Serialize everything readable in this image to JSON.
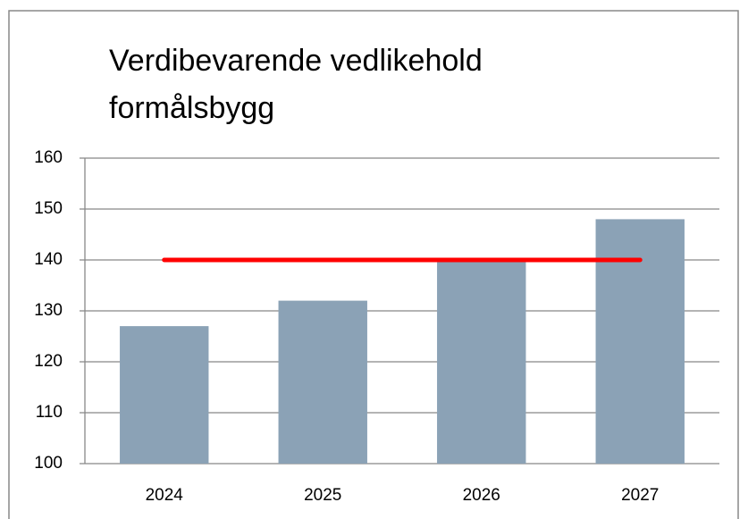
{
  "chart_data": {
    "type": "bar",
    "title": [
      "Verdibevarende vedlikehold",
      "formålsbygg"
    ],
    "categories": [
      "2024",
      "2025",
      "2026",
      "2027"
    ],
    "series": [
      {
        "type": "bar",
        "color": "#8ba2b6",
        "values": [
          127,
          132,
          140,
          148
        ]
      },
      {
        "type": "line",
        "color": "#ff0000",
        "values": [
          140,
          140,
          140,
          140
        ]
      }
    ],
    "ylim": [
      100,
      160
    ],
    "yticks": [
      100,
      110,
      120,
      130,
      140,
      150,
      160
    ],
    "grid": true
  }
}
